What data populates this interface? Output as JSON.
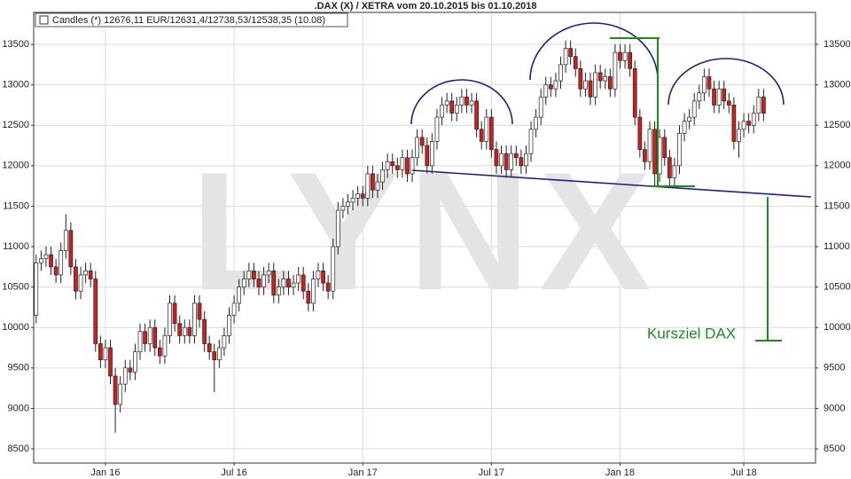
{
  "chart_data": {
    "type": "candlestick",
    "title": ".DAX (X) / XETRA vom 20.10.2015 bis 01.10.2018",
    "legend_label": "Candles (*) 12676,11 EUR/12631,4/12738,53/12538,35 (10.08)",
    "watermark": "LYNX",
    "target_label": "Kursziel DAX",
    "up_color": "#ffffff",
    "down_color": "#cc1f1f",
    "grid": true,
    "ylim": [
      8325,
      13895
    ],
    "yticks": [
      8500,
      9000,
      9500,
      10000,
      10500,
      11000,
      11500,
      12000,
      12500,
      13000,
      13500
    ],
    "categories": [
      null,
      null,
      null,
      null,
      null,
      null,
      null,
      null,
      null,
      null,
      null,
      null,
      null,
      null,
      "Jan 16",
      null,
      null,
      null,
      null,
      null,
      null,
      null,
      null,
      null,
      null,
      null,
      null,
      null,
      null,
      null,
      null,
      null,
      null,
      null,
      null,
      null,
      null,
      null,
      null,
      null,
      "Jul 16",
      null,
      null,
      null,
      null,
      null,
      null,
      null,
      null,
      null,
      null,
      null,
      null,
      null,
      null,
      null,
      null,
      null,
      null,
      null,
      null,
      null,
      null,
      null,
      null,
      null,
      "Jan 17",
      null,
      null,
      null,
      null,
      null,
      null,
      null,
      null,
      null,
      null,
      null,
      null,
      null,
      null,
      null,
      null,
      null,
      null,
      null,
      null,
      null,
      null,
      null,
      null,
      null,
      "Jul 17",
      null,
      null,
      null,
      null,
      null,
      null,
      null,
      null,
      null,
      null,
      null,
      null,
      null,
      null,
      null,
      null,
      null,
      null,
      null,
      null,
      null,
      null,
      null,
      null,
      null,
      "Jan 18",
      null,
      null,
      null,
      null,
      null,
      null,
      null,
      null,
      null,
      null,
      null,
      null,
      null,
      null,
      null,
      null,
      null,
      null,
      null,
      null,
      null,
      null,
      null,
      null,
      "Jul 18",
      null,
      null,
      null,
      null,
      null,
      null,
      null,
      null,
      null,
      null,
      null,
      null,
      null,
      null
    ],
    "open": [
      10150,
      10800,
      10850,
      10900,
      10750,
      10650,
      10950,
      11200,
      10750,
      10450,
      10650,
      10700,
      10600,
      9800,
      9600,
      9750,
      9400,
      9050,
      9300,
      9500,
      9450,
      9700,
      9950,
      9800,
      10000,
      9750,
      9650,
      9900,
      10300,
      10050,
      9900,
      10000,
      9900,
      10300,
      10100,
      9800,
      9700,
      9600,
      9750,
      9900,
      10150,
      10300,
      10500,
      10600,
      10700,
      10600,
      10500,
      10650,
      10700,
      10400,
      10500,
      10600,
      10500,
      10550,
      10650,
      10450,
      10300,
      10600,
      10700,
      10550,
      10450,
      11000,
      11450,
      11500,
      11550,
      11600,
      11650,
      11600,
      11900,
      11700,
      11800,
      11950,
      12050,
      12000,
      11950,
      12100,
      11900,
      12100,
      12350,
      12250,
      12000,
      12300,
      12600,
      12750,
      12800,
      12650,
      12750,
      12850,
      12750,
      12800,
      12450,
      12300,
      12600,
      12200,
      12000,
      12150,
      11950,
      12150,
      12100,
      12000,
      12150,
      12450,
      12600,
      12850,
      13000,
      12950,
      13050,
      13250,
      13450,
      13350,
      13200,
      12950,
      13050,
      12850,
      13150,
      13050,
      13100,
      12950,
      13400,
      13300,
      13400,
      13200,
      12600,
      12200,
      12050,
      12450,
      11900,
      12350,
      12100,
      11850,
      12000,
      12400,
      12550,
      12600,
      12800,
      12900,
      13100,
      12950,
      12750,
      12950,
      12800,
      12750,
      12300,
      12450,
      12550,
      12500,
      12650,
      12850,
      null,
      null,
      null,
      null,
      null,
      null,
      null,
      null,
      null,
      null
    ],
    "high": [
      10900,
      10950,
      11000,
      11000,
      10850,
      11050,
      11400,
      11300,
      10850,
      10750,
      10800,
      10800,
      10700,
      9900,
      9850,
      9850,
      9500,
      9400,
      9600,
      9600,
      9800,
      10050,
      10050,
      10100,
      10100,
      9850,
      10000,
      10400,
      10400,
      10150,
      10100,
      10100,
      10400,
      10400,
      10200,
      9900,
      9800,
      9850,
      10000,
      10250,
      10400,
      10600,
      10700,
      10800,
      10800,
      10700,
      10750,
      10800,
      10800,
      10600,
      10700,
      10700,
      10650,
      10750,
      10750,
      10550,
      10700,
      10800,
      10800,
      10650,
      11100,
      11550,
      11600,
      11650,
      11700,
      11750,
      11750,
      12000,
      12000,
      11900,
      12050,
      12150,
      12150,
      12100,
      12200,
      12200,
      12200,
      12450,
      12450,
      12350,
      12400,
      12700,
      12850,
      12900,
      12900,
      12850,
      12950,
      12950,
      12900,
      12900,
      12550,
      12700,
      12700,
      12300,
      12250,
      12250,
      12250,
      12250,
      12200,
      12250,
      12550,
      12700,
      12950,
      13100,
      13100,
      13150,
      13350,
      13550,
      13550,
      13450,
      13300,
      13150,
      13150,
      13250,
      13250,
      13200,
      13200,
      13500,
      13500,
      13500,
      13500,
      13300,
      12700,
      12300,
      12550,
      12550,
      12450,
      12450,
      12200,
      12100,
      12500,
      12650,
      12700,
      12900,
      13000,
      13200,
      13200,
      13050,
      13050,
      13050,
      12900,
      12850,
      12550,
      12650,
      12650,
      12750,
      12950,
      12950,
      null,
      null,
      null,
      null,
      null,
      null,
      null,
      null,
      null,
      null
    ],
    "low": [
      10050,
      10700,
      10750,
      10650,
      10550,
      10550,
      10850,
      10650,
      10350,
      10350,
      10550,
      10500,
      9700,
      9500,
      9500,
      9300,
      8700,
      8950,
      9200,
      9350,
      9350,
      9600,
      9700,
      9700,
      9650,
      9550,
      9550,
      9800,
      9950,
      9800,
      9800,
      9800,
      9800,
      10000,
      9700,
      9600,
      9200,
      9500,
      9650,
      9800,
      10050,
      10200,
      10400,
      10500,
      10500,
      10400,
      10400,
      10550,
      10300,
      10300,
      10400,
      10400,
      10400,
      10450,
      10350,
      10200,
      10200,
      10500,
      10450,
      10350,
      10350,
      10900,
      11350,
      11400,
      11450,
      11500,
      11500,
      11500,
      11600,
      11600,
      11700,
      11850,
      11900,
      11850,
      11850,
      11800,
      11800,
      12000,
      12150,
      11900,
      11900,
      12200,
      12500,
      12650,
      12550,
      12550,
      12650,
      12650,
      12650,
      12350,
      12200,
      12200,
      12100,
      11900,
      11900,
      11850,
      11850,
      12000,
      11900,
      11900,
      12050,
      12350,
      12500,
      12750,
      12850,
      12850,
      12950,
      13150,
      13250,
      13100,
      12850,
      12850,
      12750,
      12750,
      12950,
      12950,
      12850,
      12850,
      13200,
      13200,
      13100,
      12500,
      12100,
      11950,
      11950,
      11750,
      11800,
      12000,
      11750,
      11750,
      11900,
      12300,
      12450,
      12500,
      12700,
      12800,
      12850,
      12650,
      12650,
      12700,
      12650,
      12200,
      12100,
      12350,
      12400,
      12400,
      12550,
      12550,
      null,
      null,
      null,
      null,
      null,
      null,
      null,
      null,
      null,
      null
    ],
    "close": [
      10800,
      10850,
      10900,
      10750,
      10650,
      10950,
      11200,
      10750,
      10450,
      10650,
      10700,
      10600,
      9800,
      9600,
      9750,
      9400,
      9050,
      9300,
      9500,
      9450,
      9700,
      9950,
      9800,
      10000,
      9750,
      9650,
      9900,
      10300,
      10050,
      9900,
      10000,
      9900,
      10300,
      10100,
      9800,
      9700,
      9600,
      9750,
      9900,
      10150,
      10300,
      10500,
      10600,
      10700,
      10600,
      10500,
      10650,
      10700,
      10400,
      10500,
      10600,
      10500,
      10550,
      10650,
      10450,
      10300,
      10600,
      10700,
      10550,
      10450,
      11000,
      11450,
      11500,
      11550,
      11600,
      11650,
      11600,
      11900,
      11700,
      11800,
      11950,
      12050,
      12000,
      11950,
      12100,
      11900,
      12100,
      12350,
      12250,
      12000,
      12300,
      12600,
      12750,
      12800,
      12650,
      12750,
      12850,
      12750,
      12800,
      12450,
      12300,
      12600,
      12200,
      12000,
      12150,
      11950,
      12150,
      12100,
      12000,
      12150,
      12450,
      12600,
      12850,
      13000,
      12950,
      13050,
      13250,
      13450,
      13350,
      13200,
      12950,
      13050,
      12850,
      13150,
      13050,
      13100,
      12950,
      13400,
      13300,
      13400,
      13200,
      12600,
      12200,
      12050,
      12450,
      11900,
      12350,
      12100,
      11850,
      12000,
      12400,
      12550,
      12600,
      12800,
      12900,
      13100,
      12950,
      12750,
      12950,
      12800,
      12750,
      12300,
      12450,
      12550,
      12500,
      12650,
      12850,
      12650,
      null,
      null,
      null,
      null,
      null,
      null,
      null,
      null,
      null,
      null
    ]
  }
}
